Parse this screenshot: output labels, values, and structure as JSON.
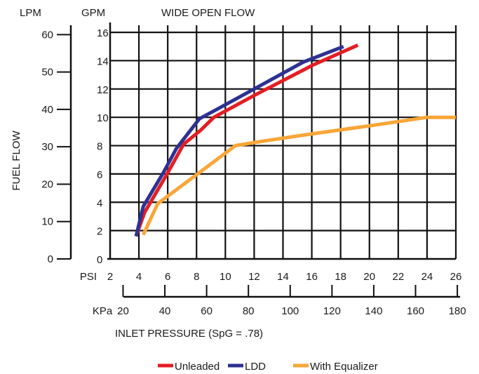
{
  "chart_data": {
    "type": "line",
    "title": "WIDE OPEN FLOW",
    "ylabel": "FUEL FLOW",
    "xlabel": "INLET PRESSURE (SpG = .78)",
    "y_unit_left": "LPM",
    "y_unit_right": "GPM",
    "x_unit_top": "PSI",
    "x_unit_bottom": "KPa",
    "grid": true,
    "legend_position": "bottom",
    "psi_axis": {
      "range": [
        2,
        26
      ],
      "ticks": [
        "2",
        "4",
        "6",
        "8",
        "10",
        "12",
        "14",
        "16",
        "18",
        "20",
        "22",
        "24",
        "26"
      ]
    },
    "kpa_axis": {
      "range": [
        13.8,
        179.3
      ],
      "ticks": [
        "20",
        "40",
        "60",
        "80",
        "100",
        "120",
        "140",
        "160",
        "180"
      ]
    },
    "gpm_axis": {
      "range": [
        0,
        16.5
      ],
      "ticks": [
        "0",
        "2",
        "4",
        "6",
        "8",
        "10",
        "12",
        "14",
        "16"
      ]
    },
    "lpm_axis": {
      "range": [
        0,
        62.5
      ],
      "ticks": [
        "0",
        "10",
        "20",
        "30",
        "40",
        "50",
        "60"
      ]
    },
    "series": [
      {
        "name": "Unleaded",
        "color": "#e31e24",
        "x": [
          3.8,
          4.4,
          5.9,
          7.1,
          8.3,
          9.2,
          12.1,
          16.1,
          19.2
        ],
        "y": [
          1.6,
          3.3,
          5.9,
          8.1,
          9.1,
          10.0,
          11.6,
          13.7,
          15.1
        ]
      },
      {
        "name": "LDD",
        "color": "#2e3192",
        "x": [
          3.8,
          4.3,
          5.7,
          6.6,
          8.2,
          9.3,
          12.0,
          15.4,
          18.2
        ],
        "y": [
          1.6,
          3.7,
          6.1,
          7.8,
          9.9,
          10.5,
          12.0,
          13.9,
          15.0
        ]
      },
      {
        "name": "With Equalizer",
        "color": "#f9a638",
        "x": [
          4.3,
          5.3,
          8.2,
          10.7,
          12.5,
          15.8,
          20.0,
          24.0,
          26.0
        ],
        "y": [
          1.7,
          3.9,
          6.1,
          8.0,
          8.3,
          8.8,
          9.4,
          10.0,
          10.0
        ]
      }
    ]
  }
}
